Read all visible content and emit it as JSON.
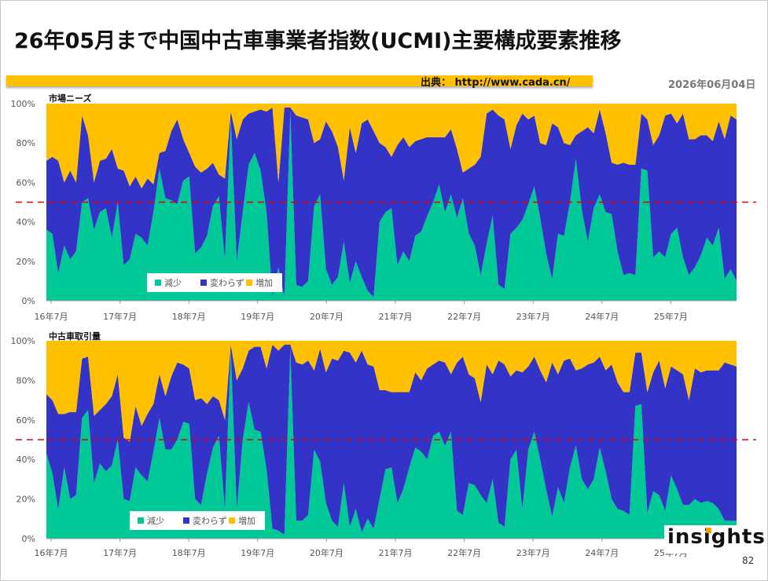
{
  "title": "26年05月まで中国中古車事業者指数(UCMI)主要構成要素推移",
  "source": "出典： http://www.cada.cn/",
  "date": "2026年06月04日",
  "logo": "insights",
  "page_number": "82",
  "colors": {
    "decrease": "#00c896",
    "unchanged": "#3333c8",
    "increase": "#ffc000",
    "reference_line": "#e00000"
  },
  "x_tick_labels": [
    "16年7月",
    "17年7月",
    "18年7月",
    "19年7月",
    "20年7月",
    "21年7月",
    "22年7月",
    "23年7月",
    "24年7月",
    "25年7月"
  ],
  "y_tick_labels": [
    "0%",
    "20%",
    "40%",
    "60%",
    "80%",
    "100%"
  ],
  "chart_data": [
    {
      "type": "area",
      "stacked": true,
      "title": "市場ニーズ",
      "x_start": "2016-01",
      "x_end": "2026-05",
      "ylim": [
        0,
        100
      ],
      "reference_line": 50,
      "legend": [
        "減少",
        "変わらず",
        "増加"
      ],
      "series": [
        {
          "name": "減少",
          "values": [
            36,
            34,
            14,
            28,
            21,
            25,
            50,
            52,
            36,
            45,
            47,
            32,
            50,
            18,
            21,
            34,
            32,
            28,
            45,
            67,
            52,
            51,
            49,
            61,
            63,
            24,
            27,
            33,
            48,
            53,
            21,
            92,
            20,
            45,
            69,
            75,
            66,
            45,
            2,
            17,
            2,
            96,
            8,
            7,
            10,
            48,
            54,
            16,
            8,
            12,
            30,
            9,
            20,
            12,
            5,
            2,
            40,
            45,
            47,
            18,
            25,
            20,
            33,
            35,
            43,
            50,
            59,
            45,
            54,
            42,
            52,
            34,
            28,
            13,
            29,
            43,
            8,
            6,
            34,
            37,
            41,
            49,
            58,
            42,
            24,
            11,
            34,
            33,
            50,
            72,
            46,
            30,
            47,
            54,
            45,
            44,
            25,
            13,
            14,
            13,
            67,
            66,
            22,
            25,
            22,
            34,
            37,
            22,
            13,
            17,
            23,
            32,
            28,
            37,
            11,
            16,
            10
          ],
          "values_mirror": [],
          "_": ""
        },
        {
          "name": "変わらず",
          "values": [
            35,
            39,
            57,
            32,
            45,
            35,
            44,
            32,
            24,
            26,
            25,
            45,
            17,
            48,
            37,
            29,
            25,
            34,
            14,
            8,
            24,
            35,
            43,
            21,
            12,
            44,
            38,
            34,
            22,
            11,
            41,
            4,
            62,
            47,
            26,
            21,
            31,
            51,
            96,
            43,
            96,
            2,
            86,
            86,
            82,
            32,
            28,
            75,
            78,
            66,
            31,
            79,
            55,
            78,
            87,
            84,
            40,
            33,
            26,
            61,
            58,
            58,
            48,
            47,
            40,
            33,
            24,
            38,
            33,
            35,
            13,
            33,
            41,
            60,
            66,
            54,
            86,
            86,
            43,
            52,
            54,
            43,
            36,
            38,
            55,
            79,
            54,
            47,
            29,
            12,
            40,
            58,
            38,
            43,
            40,
            26,
            44,
            57,
            55,
            56,
            28,
            26,
            57,
            59,
            72,
            61,
            53,
            73,
            69,
            65,
            61,
            52,
            53,
            54,
            71,
            78,
            82
          ]
        },
        {
          "name": "増加",
          "values": [
            29,
            27,
            29,
            40,
            34,
            40,
            6,
            16,
            40,
            29,
            28,
            23,
            33,
            34,
            42,
            37,
            43,
            38,
            41,
            25,
            24,
            14,
            8,
            18,
            25,
            32,
            35,
            33,
            30,
            36,
            38,
            4,
            18,
            8,
            5,
            4,
            3,
            4,
            2,
            40,
            2,
            2,
            6,
            7,
            8,
            20,
            18,
            9,
            14,
            22,
            39,
            12,
            25,
            10,
            8,
            14,
            20,
            22,
            27,
            21,
            17,
            22,
            19,
            18,
            17,
            17,
            17,
            17,
            13,
            23,
            35,
            33,
            31,
            27,
            5,
            3,
            6,
            8,
            23,
            11,
            5,
            8,
            6,
            20,
            21,
            10,
            12,
            20,
            21,
            16,
            14,
            12,
            15,
            3,
            15,
            30,
            31,
            30,
            31,
            31,
            5,
            8,
            21,
            16,
            6,
            5,
            10,
            5,
            18,
            18,
            16,
            16,
            19,
            9,
            18,
            6,
            8
          ]
        }
      ]
    },
    {
      "type": "area",
      "stacked": true,
      "title": "中古車取引量",
      "x_start": "2016-01",
      "x_end": "2026-05",
      "ylim": [
        0,
        100
      ],
      "reference_line": 50,
      "legend": [
        "減少",
        "変わらず",
        "増加"
      ],
      "series": [
        {
          "name": "減少",
          "values": [
            43,
            33,
            15,
            36,
            20,
            22,
            61,
            65,
            28,
            38,
            34,
            37,
            50,
            20,
            19,
            36,
            32,
            29,
            44,
            61,
            45,
            45,
            50,
            59,
            58,
            20,
            17,
            33,
            46,
            52,
            15,
            95,
            15,
            50,
            69,
            55,
            54,
            35,
            5,
            4,
            2,
            96,
            9,
            9,
            12,
            45,
            39,
            18,
            9,
            6,
            28,
            6,
            15,
            3,
            10,
            5,
            20,
            35,
            36,
            18,
            25,
            36,
            46,
            44,
            40,
            52,
            54,
            47,
            54,
            14,
            12,
            28,
            27,
            22,
            18,
            30,
            8,
            6,
            40,
            45,
            15,
            45,
            54,
            40,
            25,
            11,
            26,
            18,
            36,
            47,
            30,
            25,
            30,
            46,
            34,
            20,
            15,
            14,
            12,
            67,
            68,
            13,
            24,
            22,
            14,
            32,
            25,
            17,
            17,
            20,
            18,
            19,
            18,
            15,
            9,
            9,
            9
          ],
          "_": ""
        },
        {
          "name": "変わらず",
          "values": [
            30,
            37,
            48,
            27,
            44,
            42,
            30,
            27,
            34,
            27,
            34,
            35,
            33,
            31,
            30,
            31,
            25,
            34,
            24,
            22,
            27,
            37,
            39,
            29,
            28,
            50,
            54,
            35,
            26,
            18,
            45,
            3,
            65,
            36,
            26,
            42,
            43,
            51,
            93,
            91,
            96,
            2,
            80,
            79,
            78,
            40,
            57,
            66,
            82,
            84,
            67,
            88,
            74,
            92,
            78,
            82,
            55,
            40,
            38,
            56,
            49,
            38,
            38,
            36,
            46,
            36,
            36,
            42,
            29,
            75,
            80,
            55,
            54,
            47,
            70,
            53,
            82,
            82,
            42,
            40,
            69,
            42,
            38,
            45,
            54,
            78,
            57,
            72,
            55,
            38,
            56,
            63,
            59,
            46,
            51,
            68,
            64,
            60,
            62,
            27,
            26,
            61,
            60,
            68,
            62,
            55,
            60,
            66,
            53,
            66,
            66,
            66,
            67,
            70,
            80,
            79,
            78
          ]
        },
        {
          "name": "増加",
          "values": [
            27,
            30,
            37,
            37,
            36,
            36,
            9,
            8,
            38,
            35,
            32,
            28,
            17,
            49,
            51,
            33,
            43,
            37,
            32,
            17,
            28,
            18,
            11,
            12,
            14,
            30,
            29,
            32,
            28,
            30,
            40,
            2,
            20,
            14,
            5,
            3,
            3,
            14,
            2,
            5,
            2,
            2,
            11,
            12,
            10,
            15,
            4,
            16,
            9,
            10,
            5,
            6,
            11,
            5,
            12,
            13,
            25,
            25,
            26,
            26,
            26,
            26,
            16,
            20,
            14,
            12,
            10,
            11,
            17,
            11,
            8,
            17,
            19,
            31,
            12,
            17,
            10,
            12,
            18,
            15,
            16,
            13,
            8,
            15,
            21,
            11,
            17,
            10,
            9,
            15,
            14,
            12,
            11,
            8,
            15,
            12,
            21,
            26,
            26,
            6,
            6,
            26,
            16,
            10,
            24,
            13,
            15,
            17,
            30,
            14,
            16,
            15,
            15,
            15,
            11,
            12,
            13
          ]
        }
      ]
    }
  ]
}
